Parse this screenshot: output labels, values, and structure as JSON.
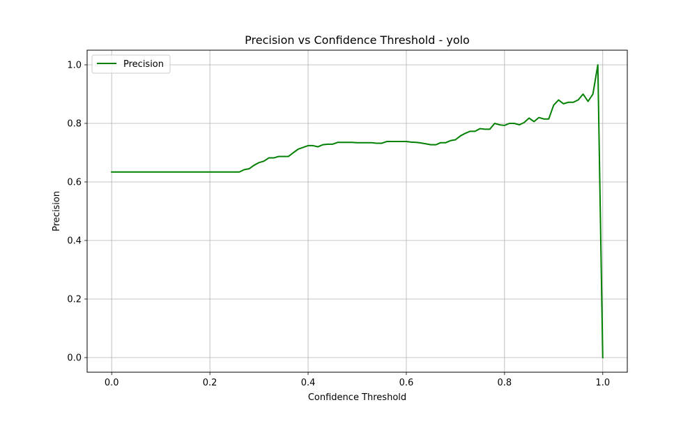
{
  "chart_data": {
    "type": "line",
    "title": "Precision vs Confidence Threshold - yolo",
    "xlabel": "Confidence Threshold",
    "ylabel": "Precision",
    "xlim": [
      -0.05,
      1.05
    ],
    "ylim": [
      -0.05,
      1.05
    ],
    "xticks": [
      0.0,
      0.2,
      0.4,
      0.6,
      0.8,
      1.0
    ],
    "xtick_labels": [
      "0.0",
      "0.2",
      "0.4",
      "0.6",
      "0.8",
      "1.0"
    ],
    "yticks": [
      0.0,
      0.2,
      0.4,
      0.6,
      0.8,
      1.0
    ],
    "ytick_labels": [
      "0.0",
      "0.2",
      "0.4",
      "0.6",
      "0.8",
      "1.0"
    ],
    "grid": true,
    "legend": {
      "position": "upper-left"
    },
    "series": [
      {
        "name": "Precision",
        "color": "#008000",
        "points": [
          [
            0.0,
            0.634
          ],
          [
            0.05,
            0.634
          ],
          [
            0.1,
            0.634
          ],
          [
            0.15,
            0.634
          ],
          [
            0.2,
            0.634
          ],
          [
            0.25,
            0.634
          ],
          [
            0.26,
            0.634
          ],
          [
            0.27,
            0.642
          ],
          [
            0.28,
            0.645
          ],
          [
            0.29,
            0.657
          ],
          [
            0.3,
            0.666
          ],
          [
            0.31,
            0.671
          ],
          [
            0.32,
            0.682
          ],
          [
            0.33,
            0.682
          ],
          [
            0.34,
            0.687
          ],
          [
            0.35,
            0.687
          ],
          [
            0.36,
            0.687
          ],
          [
            0.37,
            0.7
          ],
          [
            0.38,
            0.712
          ],
          [
            0.39,
            0.718
          ],
          [
            0.4,
            0.724
          ],
          [
            0.41,
            0.724
          ],
          [
            0.42,
            0.72
          ],
          [
            0.43,
            0.727
          ],
          [
            0.44,
            0.729
          ],
          [
            0.45,
            0.729
          ],
          [
            0.46,
            0.735
          ],
          [
            0.47,
            0.735
          ],
          [
            0.48,
            0.735
          ],
          [
            0.49,
            0.735
          ],
          [
            0.5,
            0.734
          ],
          [
            0.51,
            0.734
          ],
          [
            0.52,
            0.734
          ],
          [
            0.53,
            0.734
          ],
          [
            0.54,
            0.732
          ],
          [
            0.55,
            0.732
          ],
          [
            0.56,
            0.738
          ],
          [
            0.57,
            0.738
          ],
          [
            0.58,
            0.738
          ],
          [
            0.59,
            0.738
          ],
          [
            0.6,
            0.738
          ],
          [
            0.61,
            0.736
          ],
          [
            0.62,
            0.735
          ],
          [
            0.63,
            0.733
          ],
          [
            0.64,
            0.73
          ],
          [
            0.65,
            0.727
          ],
          [
            0.66,
            0.727
          ],
          [
            0.67,
            0.734
          ],
          [
            0.68,
            0.734
          ],
          [
            0.69,
            0.741
          ],
          [
            0.7,
            0.744
          ],
          [
            0.71,
            0.757
          ],
          [
            0.72,
            0.766
          ],
          [
            0.73,
            0.773
          ],
          [
            0.74,
            0.773
          ],
          [
            0.75,
            0.782
          ],
          [
            0.76,
            0.78
          ],
          [
            0.77,
            0.78
          ],
          [
            0.78,
            0.8
          ],
          [
            0.79,
            0.795
          ],
          [
            0.8,
            0.793
          ],
          [
            0.81,
            0.8
          ],
          [
            0.82,
            0.8
          ],
          [
            0.83,
            0.795
          ],
          [
            0.84,
            0.803
          ],
          [
            0.85,
            0.818
          ],
          [
            0.86,
            0.806
          ],
          [
            0.87,
            0.82
          ],
          [
            0.88,
            0.815
          ],
          [
            0.89,
            0.815
          ],
          [
            0.9,
            0.862
          ],
          [
            0.91,
            0.88
          ],
          [
            0.92,
            0.867
          ],
          [
            0.93,
            0.872
          ],
          [
            0.94,
            0.872
          ],
          [
            0.95,
            0.88
          ],
          [
            0.96,
            0.9
          ],
          [
            0.97,
            0.875
          ],
          [
            0.98,
            0.9
          ],
          [
            0.99,
            1.0
          ],
          [
            1.0,
            0.0
          ]
        ]
      }
    ]
  }
}
